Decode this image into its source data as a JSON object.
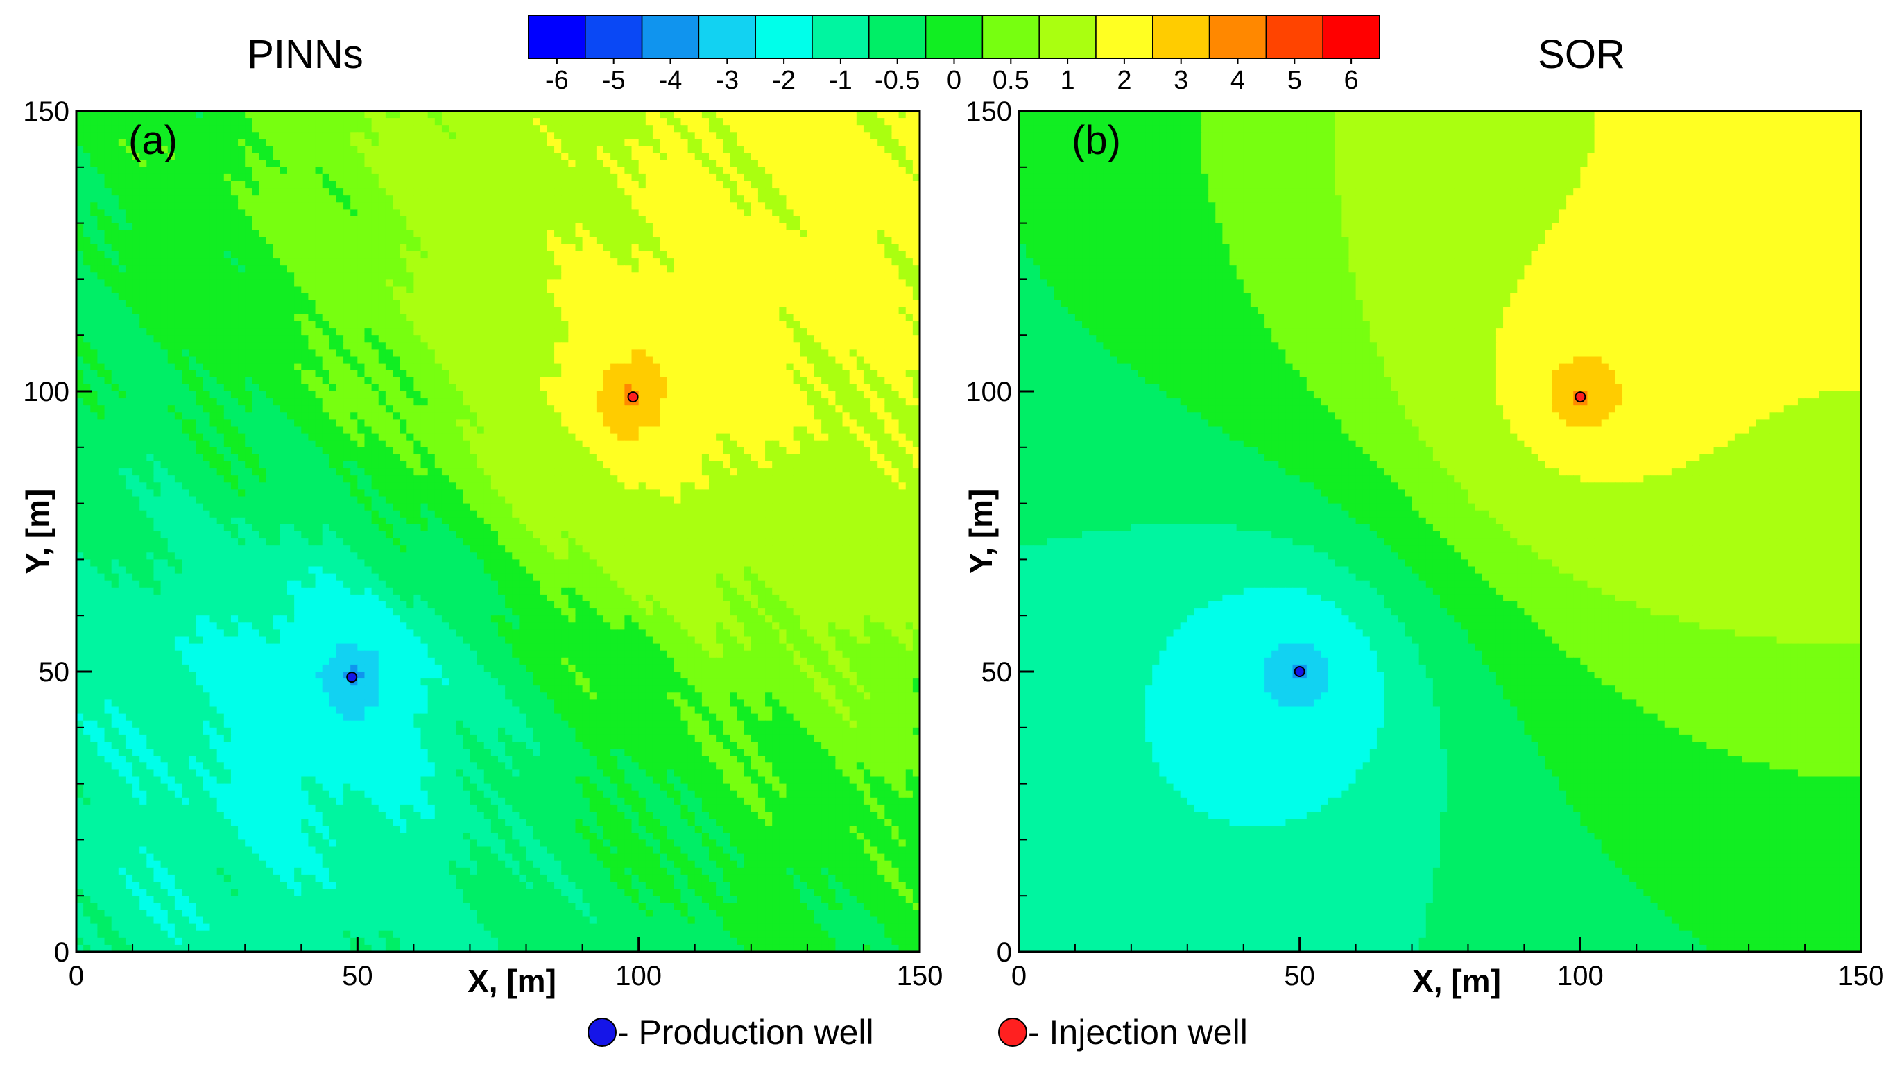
{
  "chart_data": [
    {
      "type": "contour",
      "panel": "a",
      "title": "PINNs",
      "panel_label": "(a)",
      "xlabel": "X, [m]",
      "ylabel": "Y, [m]",
      "xlim": [
        0,
        150
      ],
      "ylim": [
        0,
        150
      ],
      "x_ticks": [
        "0",
        "50",
        "100",
        "150"
      ],
      "y_ticks": [
        "0",
        "50",
        "100",
        "150"
      ],
      "production_well": {
        "x": 49,
        "y": 49
      },
      "injection_well": {
        "x": 99,
        "y": 99
      },
      "style": "irregular"
    },
    {
      "type": "contour",
      "panel": "b",
      "title": "SOR",
      "panel_label": "(b)",
      "xlabel": "X, [m]",
      "ylabel": "Y, [m]",
      "xlim": [
        0,
        150
      ],
      "ylim": [
        0,
        150
      ],
      "x_ticks": [
        "0",
        "50",
        "100",
        "150"
      ],
      "y_ticks": [
        "0",
        "50",
        "100",
        "150"
      ],
      "production_well": {
        "x": 50,
        "y": 50
      },
      "injection_well": {
        "x": 100,
        "y": 99
      },
      "style": "smooth"
    }
  ],
  "colorbar": {
    "levels": [
      -6,
      -5,
      -4,
      -3,
      -2,
      -1,
      -0.5,
      0,
      0.5,
      1,
      2,
      3,
      4,
      5,
      6
    ],
    "tick_labels": [
      "-6",
      "-5",
      "-4",
      "-3",
      "-2",
      "-1",
      "-0.5",
      "0",
      "0.5",
      "1",
      "2",
      "3",
      "4",
      "5",
      "6"
    ],
    "colors": [
      "#0000ff",
      "#0a48f5",
      "#1094ee",
      "#12d2f2",
      "#00ffea",
      "#00f5a0",
      "#00ee66",
      "#11ee22",
      "#77ff10",
      "#aaff10",
      "#ffff22",
      "#ffcc00",
      "#ff8800",
      "#ff4400",
      "#ff0000"
    ]
  },
  "legend": {
    "production_label": "- Production well",
    "injection_label": "- Injection well",
    "production_color": "#1515e8",
    "injection_color": "#ff2020"
  }
}
